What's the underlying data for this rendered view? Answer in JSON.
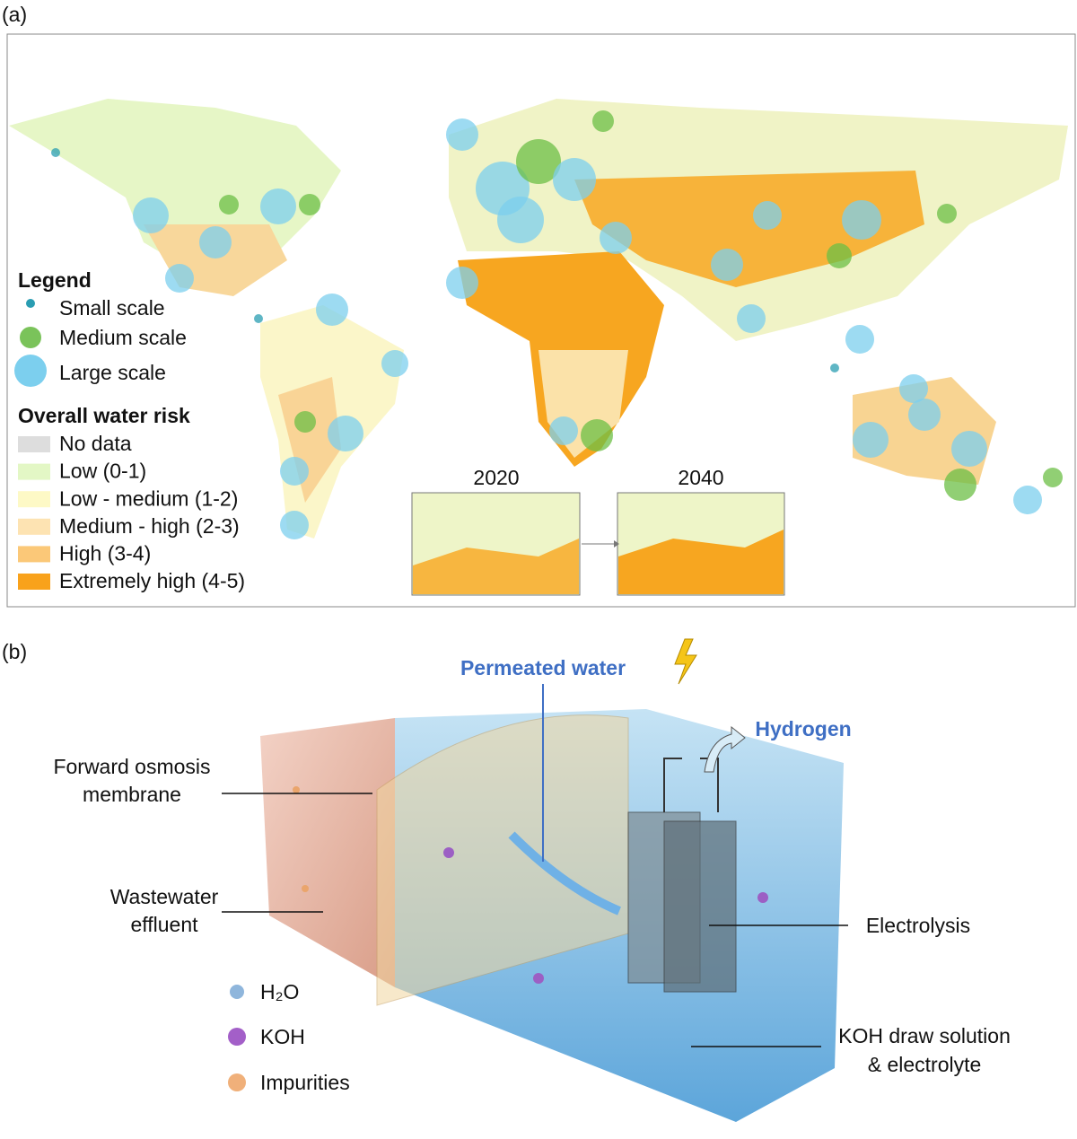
{
  "panel_a": {
    "label": "(a)",
    "legend_title": "Legend",
    "scales": [
      "Small scale",
      "Medium scale",
      "Large scale"
    ],
    "risk_title": "Overall water risk",
    "risk_levels": [
      "No data",
      "Low (0-1)",
      "Low - medium (1-2)",
      "Medium - high (2-3)",
      "High (3-4)",
      "Extremely high (4-5)"
    ],
    "insets": [
      "2020",
      "2040"
    ]
  },
  "panel_b": {
    "label": "(b)",
    "permeated": "Permeated water",
    "hydrogen": "Hydrogen",
    "membrane": [
      "Forward osmosis",
      "membrane"
    ],
    "wastewater": [
      "Wastewater",
      "effluent"
    ],
    "electrolysis": "Electrolysis",
    "draw_solution": [
      "KOH draw solution",
      "& electrolyte"
    ],
    "legend": [
      "H₂O",
      "KOH",
      "Impurities"
    ]
  }
}
